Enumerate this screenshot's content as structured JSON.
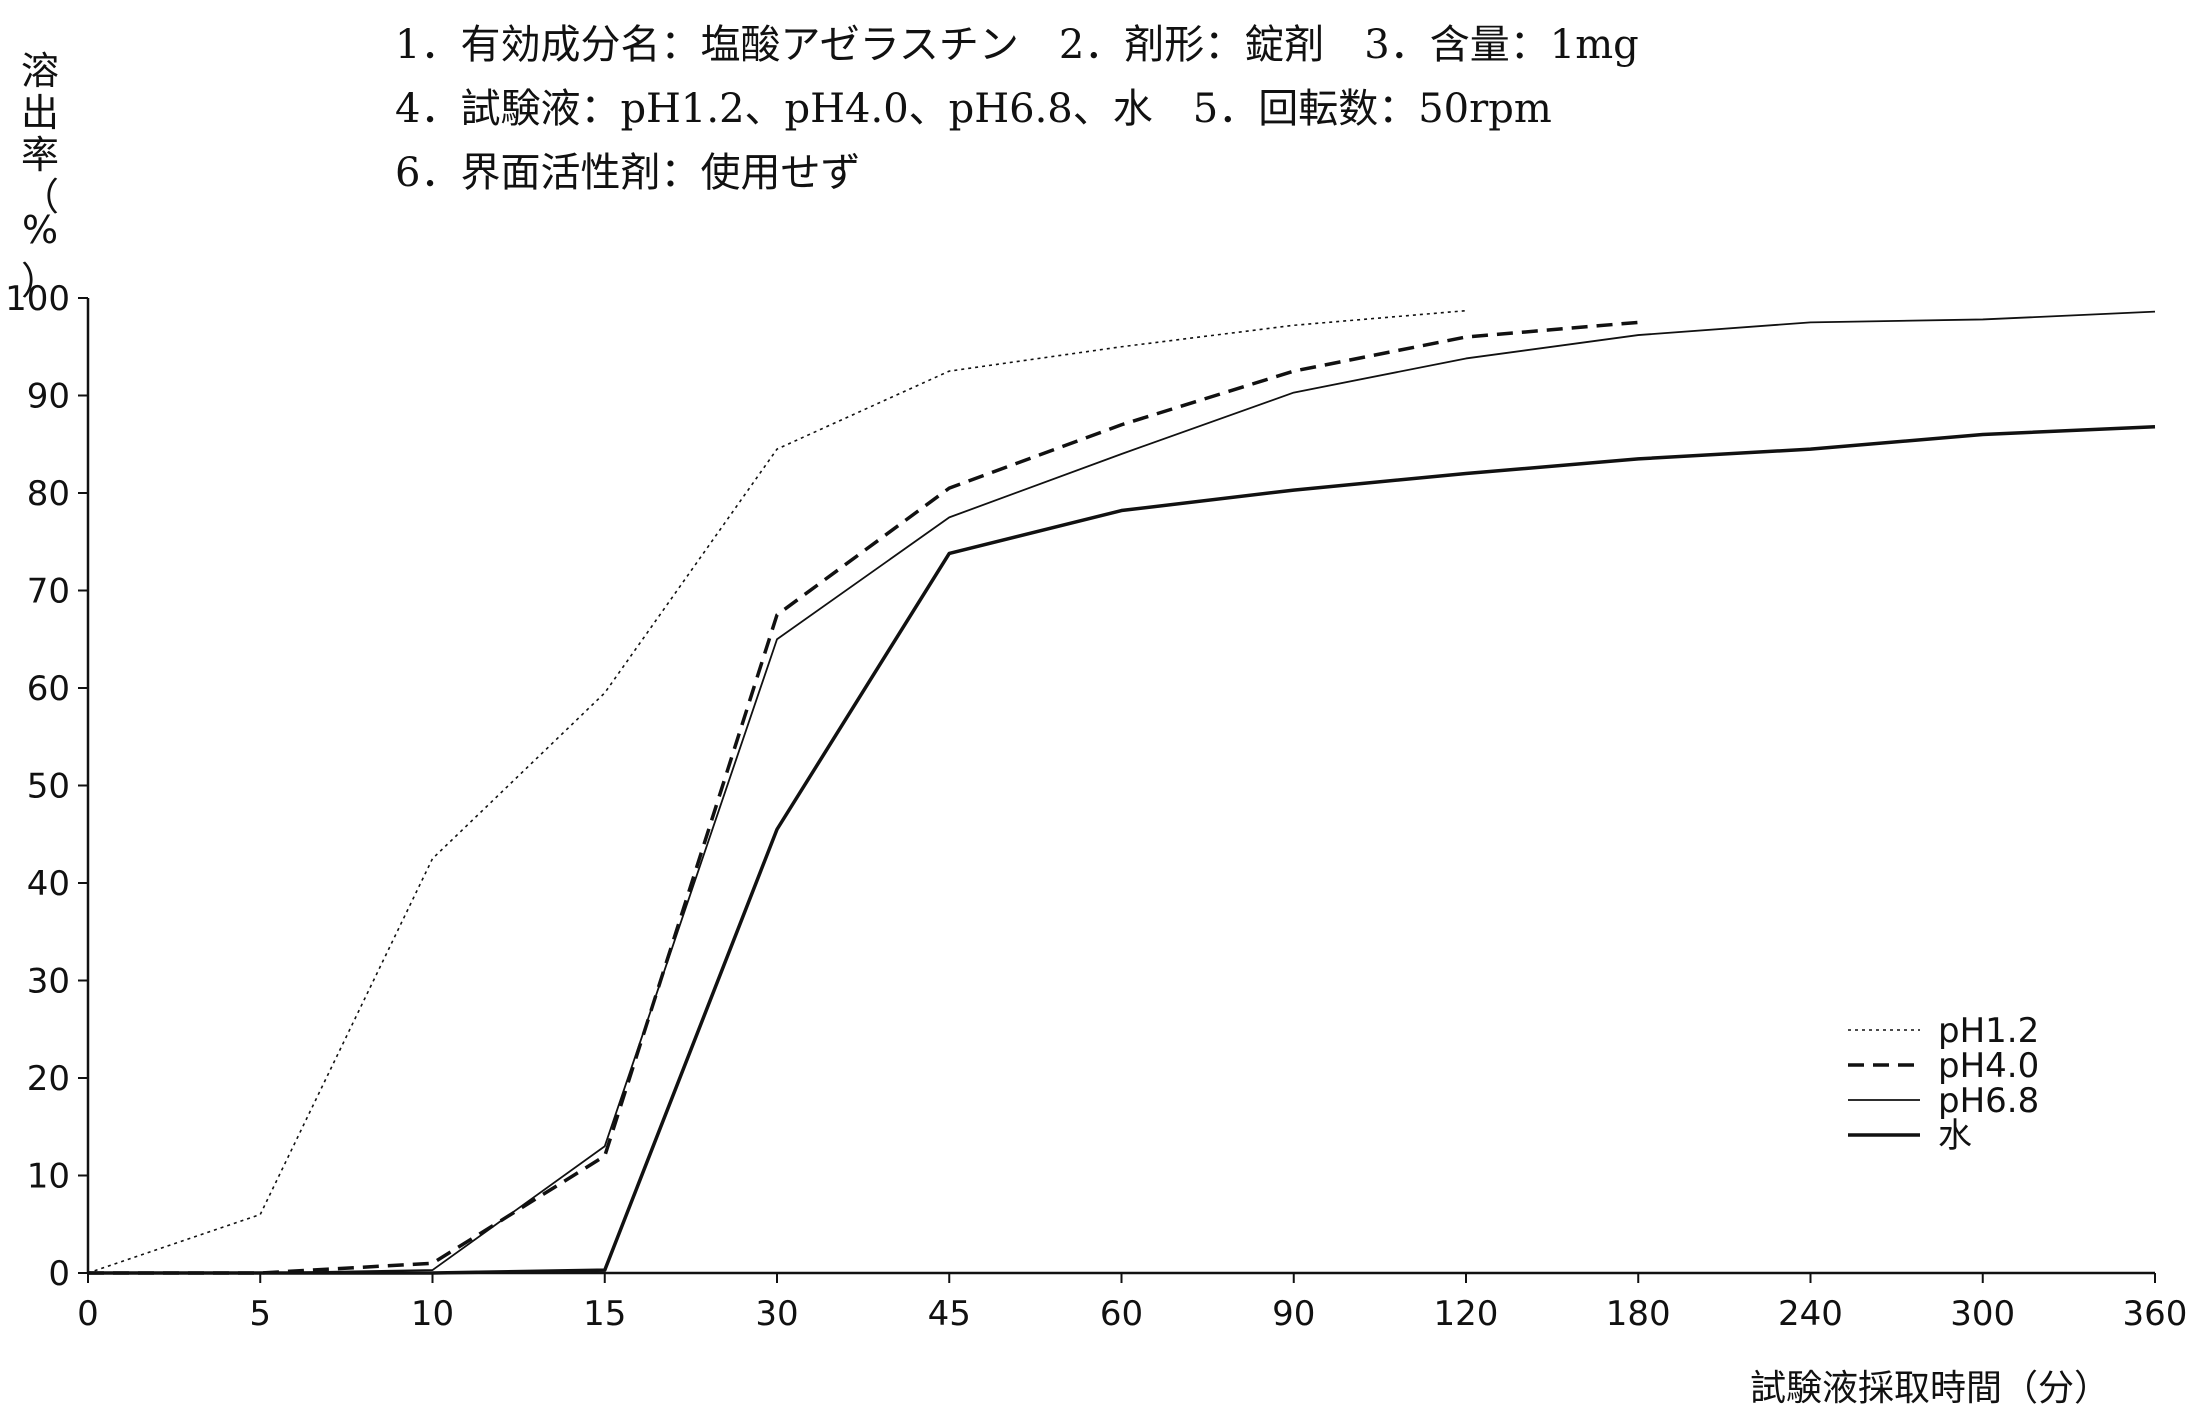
{
  "header": {
    "line1": "1．有効成分名：塩酸アゼラスチン　2．剤形：錠剤　3．含量：1mg",
    "line2": "4．試験液：pH1.2、pH4.0、pH6.8、水　5．回転数：50rpm",
    "line3": "6．界面活性剤：使用せず"
  },
  "chart_data": {
    "type": "line",
    "title": "",
    "ylabel": "溶出率（%）",
    "ylabel_chars": [
      "溶",
      "出",
      "率",
      "（",
      "%",
      "）"
    ],
    "xlabel": "試験液採取時間（分）",
    "ylim": [
      0,
      100
    ],
    "yticks": [
      "0",
      "10",
      "20",
      "30",
      "40",
      "50",
      "60",
      "70",
      "80",
      "90",
      "100"
    ],
    "categories": [
      "0",
      "5",
      "10",
      "15",
      "30",
      "45",
      "60",
      "90",
      "120",
      "180",
      "240",
      "300",
      "360"
    ],
    "legend_position": "right",
    "series": [
      {
        "name": "pH1.2",
        "style": "dotted",
        "values": [
          0,
          6,
          42.5,
          59.5,
          84.5,
          92.5,
          95,
          97.2,
          98.7,
          null,
          null,
          null,
          null
        ]
      },
      {
        "name": "pH4.0",
        "style": "dashed",
        "values": [
          0,
          0,
          1,
          12,
          67.5,
          80.5,
          87,
          92.5,
          96,
          97.5,
          null,
          null,
          null
        ]
      },
      {
        "name": "pH6.8",
        "style": "thin",
        "values": [
          0,
          0,
          0.3,
          13,
          65,
          77.5,
          84,
          90.3,
          93.8,
          96.2,
          97.5,
          97.8,
          98.6
        ]
      },
      {
        "name": "水",
        "style": "thick",
        "values": [
          0,
          0,
          0,
          0.3,
          45.5,
          73.8,
          78.2,
          80.3,
          82,
          83.5,
          84.5,
          86,
          86.8
        ]
      }
    ]
  },
  "colors": {
    "line": "#111111",
    "axis": "#111111"
  }
}
